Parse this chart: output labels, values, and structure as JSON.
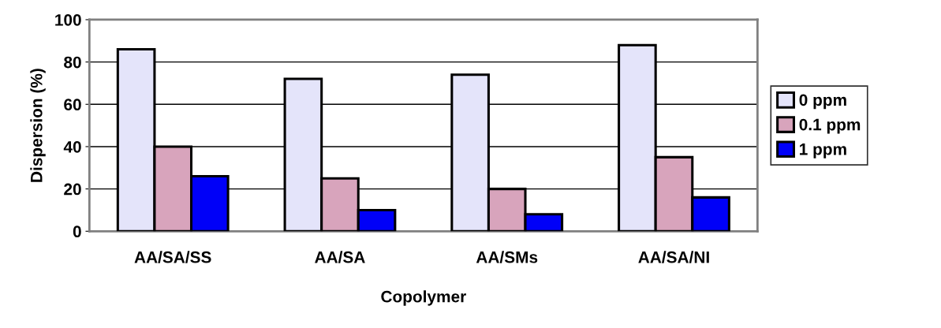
{
  "chart_data": {
    "type": "bar",
    "xlabel": "Copolymer",
    "ylabel": "Dispersion (%)",
    "categories": [
      "AA/SA/SS",
      "AA/SA",
      "AA/SMs",
      "AA/SA/NI"
    ],
    "series": [
      {
        "name": "0 ppm",
        "color": "#e4e4fa",
        "values": [
          86,
          72,
          74,
          88
        ]
      },
      {
        "name": "0.1 ppm",
        "color": "#d8a4bc",
        "values": [
          40,
          25,
          20,
          35
        ]
      },
      {
        "name": "1 ppm",
        "color": "#0000f8",
        "values": [
          26,
          10,
          8,
          16
        ]
      }
    ],
    "ylim": [
      0,
      100
    ],
    "yticks": [
      0,
      20,
      40,
      60,
      80,
      100
    ],
    "grid": "y",
    "legend": "right"
  }
}
